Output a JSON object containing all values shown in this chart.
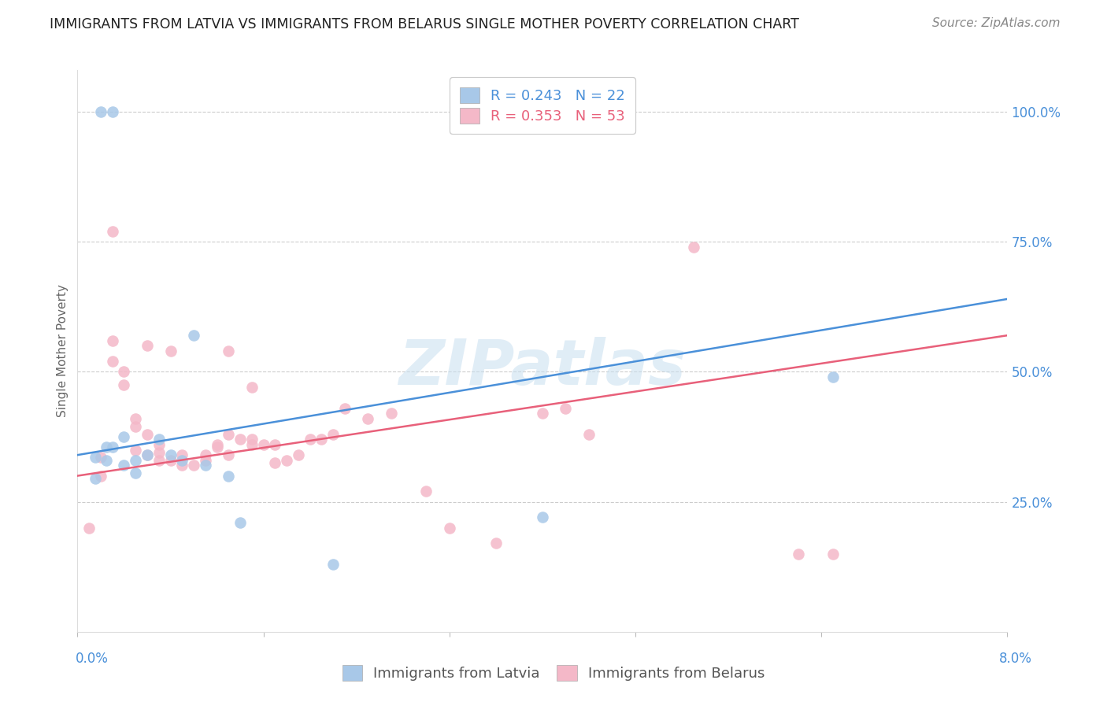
{
  "title": "IMMIGRANTS FROM LATVIA VS IMMIGRANTS FROM BELARUS SINGLE MOTHER POVERTY CORRELATION CHART",
  "source": "Source: ZipAtlas.com",
  "ylabel": "Single Mother Poverty",
  "legend_label_latvia": "Immigrants from Latvia",
  "legend_label_belarus": "Immigrants from Belarus",
  "watermark": "ZIPatlas",
  "blue_color": "#a8c8e8",
  "pink_color": "#f4b8c8",
  "blue_line_color": "#4a90d9",
  "pink_line_color": "#e8607a",
  "blue_text_color": "#4a90d9",
  "pink_text_color": "#e8607a",
  "right_axis_color": "#4a90d9",
  "xmin": 0.0,
  "xmax": 0.08,
  "ymin": 0.0,
  "ymax": 1.08,
  "latvia_x": [
    0.0015,
    0.0015,
    0.0025,
    0.0025,
    0.003,
    0.004,
    0.004,
    0.005,
    0.005,
    0.006,
    0.007,
    0.008,
    0.009,
    0.01,
    0.011,
    0.013,
    0.014,
    0.022,
    0.04,
    0.065,
    0.002,
    0.003
  ],
  "latvia_y": [
    0.335,
    0.295,
    0.33,
    0.355,
    0.355,
    0.375,
    0.32,
    0.33,
    0.305,
    0.34,
    0.37,
    0.34,
    0.33,
    0.57,
    0.32,
    0.3,
    0.21,
    0.13,
    0.22,
    0.49,
    1.0,
    1.0
  ],
  "belarus_x": [
    0.001,
    0.002,
    0.002,
    0.003,
    0.003,
    0.004,
    0.004,
    0.005,
    0.005,
    0.005,
    0.006,
    0.006,
    0.007,
    0.007,
    0.007,
    0.008,
    0.009,
    0.009,
    0.01,
    0.011,
    0.011,
    0.012,
    0.012,
    0.013,
    0.013,
    0.014,
    0.015,
    0.015,
    0.016,
    0.017,
    0.017,
    0.018,
    0.019,
    0.02,
    0.021,
    0.022,
    0.023,
    0.025,
    0.027,
    0.03,
    0.032,
    0.036,
    0.04,
    0.042,
    0.044,
    0.053,
    0.062,
    0.003,
    0.006,
    0.008,
    0.013,
    0.015,
    0.065
  ],
  "belarus_y": [
    0.2,
    0.335,
    0.3,
    0.56,
    0.52,
    0.475,
    0.5,
    0.395,
    0.41,
    0.35,
    0.34,
    0.38,
    0.36,
    0.345,
    0.33,
    0.33,
    0.32,
    0.34,
    0.32,
    0.34,
    0.33,
    0.355,
    0.36,
    0.38,
    0.34,
    0.37,
    0.37,
    0.36,
    0.36,
    0.325,
    0.36,
    0.33,
    0.34,
    0.37,
    0.37,
    0.38,
    0.43,
    0.41,
    0.42,
    0.27,
    0.2,
    0.17,
    0.42,
    0.43,
    0.38,
    0.74,
    0.15,
    0.77,
    0.55,
    0.54,
    0.54,
    0.47,
    0.15
  ],
  "latvia_trend_x": [
    0.0,
    0.08
  ],
  "latvia_trend_y": [
    0.34,
    0.64
  ],
  "belarus_trend_x": [
    0.0,
    0.08
  ],
  "belarus_trend_y": [
    0.3,
    0.57
  ],
  "yticks": [
    0.25,
    0.5,
    0.75,
    1.0
  ],
  "ytick_labels": [
    "25.0%",
    "50.0%",
    "75.0%",
    "100.0%"
  ],
  "xtick_positions": [
    0.0,
    0.016,
    0.032,
    0.048,
    0.064,
    0.08
  ],
  "title_fontsize": 12.5,
  "source_fontsize": 11,
  "axis_label_fontsize": 11,
  "tick_label_fontsize": 12,
  "legend_fontsize": 13
}
